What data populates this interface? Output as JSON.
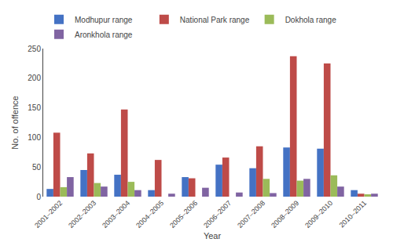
{
  "chart_data": {
    "type": "bar",
    "categories": [
      "2001–2002",
      "2002–2003",
      "2003–2004",
      "2004–2005",
      "2005–2006",
      "2006–2007",
      "2007–2008",
      "2008–2009",
      "2009–2010",
      "2010–2011"
    ],
    "series": [
      {
        "name": "Modhupur range",
        "color": "#4472C4",
        "values": [
          13,
          45,
          37,
          11,
          33,
          54,
          48,
          83,
          81,
          11
        ]
      },
      {
        "name": "National Park range",
        "color": "#BE4B48",
        "values": [
          108,
          73,
          147,
          62,
          31,
          66,
          85,
          237,
          225,
          5
        ]
      },
      {
        "name": "Dokhola range",
        "color": "#9BBB59",
        "values": [
          16,
          23,
          25,
          0,
          0,
          0,
          30,
          27,
          36,
          4
        ]
      },
      {
        "name": "Aronkhola range",
        "color": "#8064A2",
        "values": [
          33,
          17,
          11,
          5,
          15,
          7,
          6,
          30,
          17,
          5
        ]
      }
    ],
    "xlabel": "Year",
    "ylabel": "No. of offence",
    "ylim": [
      0,
      250
    ],
    "yticks": [
      0,
      50,
      100,
      150,
      200,
      250
    ],
    "grid": false,
    "legend": "upper left"
  }
}
